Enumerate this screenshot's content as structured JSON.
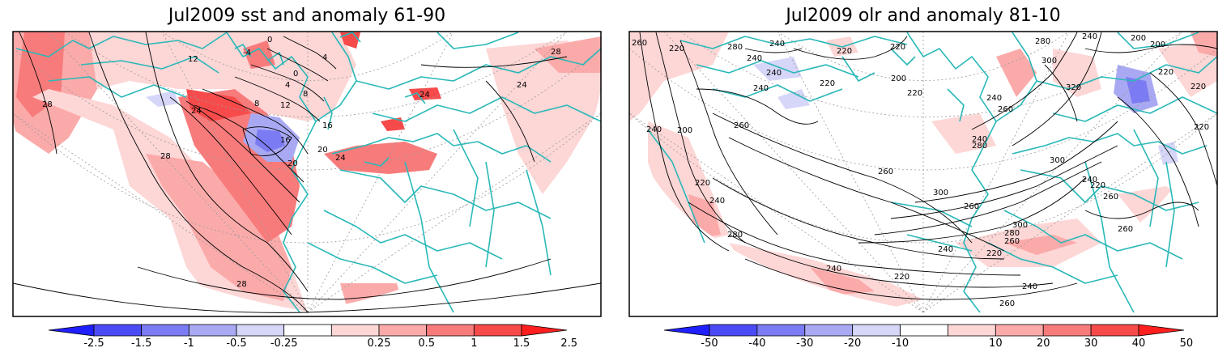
{
  "panels": [
    {
      "title": "Jul2009 sst and anomaly 61-90",
      "contour_labels": [
        "28",
        "28",
        "28",
        "28",
        "24",
        "24",
        "24",
        "20",
        "20",
        "16",
        "16",
        "12",
        "12",
        "8",
        "8",
        "4",
        "4",
        "0",
        "0",
        "-4",
        "24"
      ],
      "colorbar": {
        "ticks": [
          "-2.5",
          "-1.5",
          "-1",
          "-0.5",
          "-0.25",
          "0.25",
          "0.5",
          "1",
          "1.5",
          "2.5"
        ],
        "colors": [
          "#1f1fff",
          "#4b4bf5",
          "#7b7bf3",
          "#a9a9f3",
          "#d6d6f8",
          "#ffffff",
          "#fdd6d6",
          "#fbaaaa",
          "#f87b7b",
          "#f74b4b",
          "#ff1f1f"
        ]
      }
    },
    {
      "title": "Jul2009 olr and anomaly 81-10",
      "contour_labels": [
        "260",
        "240",
        "220",
        "280",
        "240",
        "220",
        "220",
        "240",
        "200",
        "220",
        "220",
        "240",
        "280",
        "300",
        "200",
        "200",
        "240",
        "220",
        "320",
        "220",
        "240",
        "260",
        "240",
        "200",
        "260",
        "220",
        "220",
        "240",
        "260",
        "280",
        "300",
        "300",
        "240",
        "260",
        "300",
        "280",
        "260",
        "240",
        "220",
        "220",
        "240",
        "240",
        "260",
        "260",
        "260",
        "280",
        "240",
        "220"
      ],
      "colorbar": {
        "ticks": [
          "-50",
          "-40",
          "-30",
          "-20",
          "-10",
          "10",
          "20",
          "30",
          "40",
          "50"
        ],
        "colors": [
          "#1f1fff",
          "#4b4bf5",
          "#7b7bf3",
          "#a9a9f3",
          "#d6d6f8",
          "#ffffff",
          "#fdd6d6",
          "#fbaaaa",
          "#f87b7b",
          "#f74b4b",
          "#ff1f1f"
        ]
      }
    }
  ],
  "colors": {
    "coastline": "#2ab8b8",
    "contour": "#000000",
    "grid": "#9a9a9a"
  }
}
